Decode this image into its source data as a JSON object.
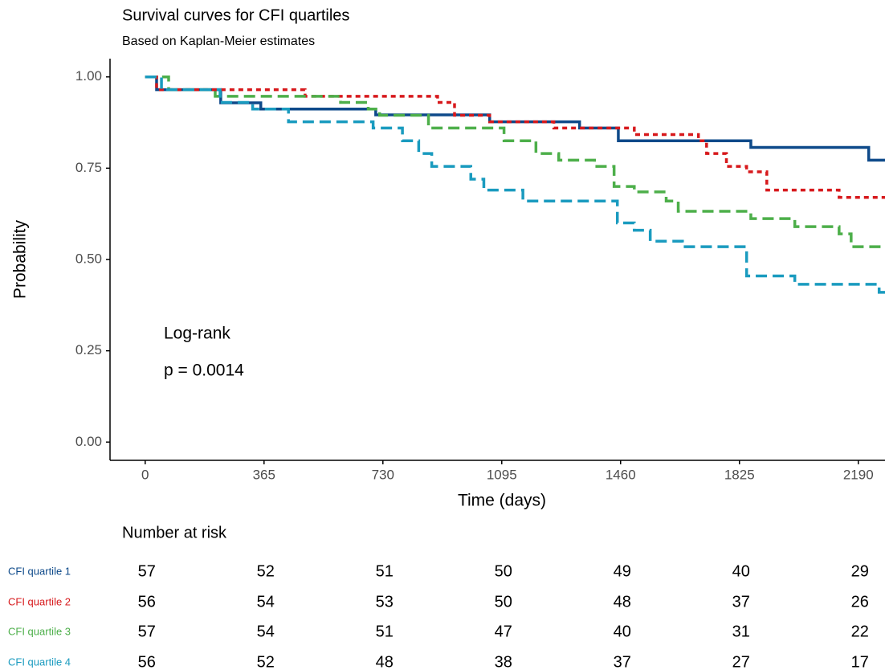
{
  "chart_data": {
    "type": "step",
    "title": "Survival curves for CFI  quartiles",
    "subtitle": "Based on Kaplan-Meier estimates",
    "xlabel": "Time (days)",
    "ylabel": "Probability",
    "xlim": [
      -108,
      2272
    ],
    "ylim": [
      -0.05,
      1.05
    ],
    "xticks": [
      0,
      365,
      730,
      1095,
      1460,
      1825,
      2190
    ],
    "yticks": [
      {
        "value": 0,
        "label": "0.00"
      },
      {
        "value": 0.25,
        "label": "0.25"
      },
      {
        "value": 0.5,
        "label": "0.50"
      },
      {
        "value": 0.75,
        "label": "0.75"
      },
      {
        "value": 1,
        "label": "1.00"
      }
    ],
    "annotations": [
      "Log-rank",
      "p = 0.0014"
    ],
    "series": [
      {
        "name": "CFI  quartile 1",
        "color": "#0e4a8a",
        "linestyle": "solid",
        "x": [
          0,
          35,
          232,
          355,
          708,
          1058,
          1334,
          1453,
          1860,
          2222
        ],
        "values": [
          1,
          0.965,
          0.929,
          0.912,
          0.896,
          0.877,
          0.86,
          0.825,
          0.807,
          0.772
        ]
      },
      {
        "name": "CFI  quartile 2",
        "color": "#d7191c",
        "linestyle": "dotted",
        "x": [
          0,
          35,
          491,
          898,
          950,
          1058,
          1255,
          1502,
          1699,
          1724,
          1785,
          1847,
          1909,
          2131
        ],
        "values": [
          1,
          0.965,
          0.947,
          0.93,
          0.895,
          0.877,
          0.86,
          0.842,
          0.825,
          0.79,
          0.755,
          0.74,
          0.69,
          0.67
        ]
      },
      {
        "name": "CFI  quartile 3",
        "color": "#4daf4a",
        "linestyle": "dashed",
        "x": [
          0,
          72,
          215,
          600,
          685,
          720,
          870,
          1102,
          1200,
          1270,
          1380,
          1440,
          1502,
          1600,
          1637,
          1860,
          1995,
          2131,
          2168
        ],
        "values": [
          1,
          0.965,
          0.947,
          0.93,
          0.912,
          0.895,
          0.86,
          0.825,
          0.79,
          0.772,
          0.755,
          0.7,
          0.685,
          0.66,
          0.632,
          0.612,
          0.59,
          0.57,
          0.535
        ]
      },
      {
        "name": "CFI  quartile 4",
        "color": "#1a9bbf",
        "linestyle": "dashed",
        "x": [
          0,
          50,
          230,
          330,
          440,
          700,
          790,
          840,
          880,
          1000,
          1040,
          1160,
          1450,
          1502,
          1551,
          1650,
          1847,
          1995,
          2254
        ],
        "values": [
          1,
          0.965,
          0.93,
          0.912,
          0.877,
          0.86,
          0.825,
          0.79,
          0.755,
          0.72,
          0.69,
          0.66,
          0.6,
          0.58,
          0.55,
          0.535,
          0.455,
          0.432,
          0.41
        ]
      }
    ],
    "risk_table": {
      "title": "Number at risk",
      "rows": [
        {
          "name": "CFI  quartile 1",
          "color": "#0e4a8a",
          "values": [
            57,
            52,
            51,
            50,
            49,
            40,
            29
          ]
        },
        {
          "name": "CFI  quartile 2",
          "color": "#d7191c",
          "values": [
            56,
            54,
            53,
            50,
            48,
            37,
            26
          ]
        },
        {
          "name": "CFI  quartile 3",
          "color": "#4daf4a",
          "values": [
            57,
            54,
            51,
            47,
            40,
            31,
            22
          ]
        },
        {
          "name": "CFI  quartile 4",
          "color": "#1a9bbf",
          "values": [
            56,
            52,
            48,
            38,
            37,
            27,
            17
          ]
        }
      ]
    }
  }
}
